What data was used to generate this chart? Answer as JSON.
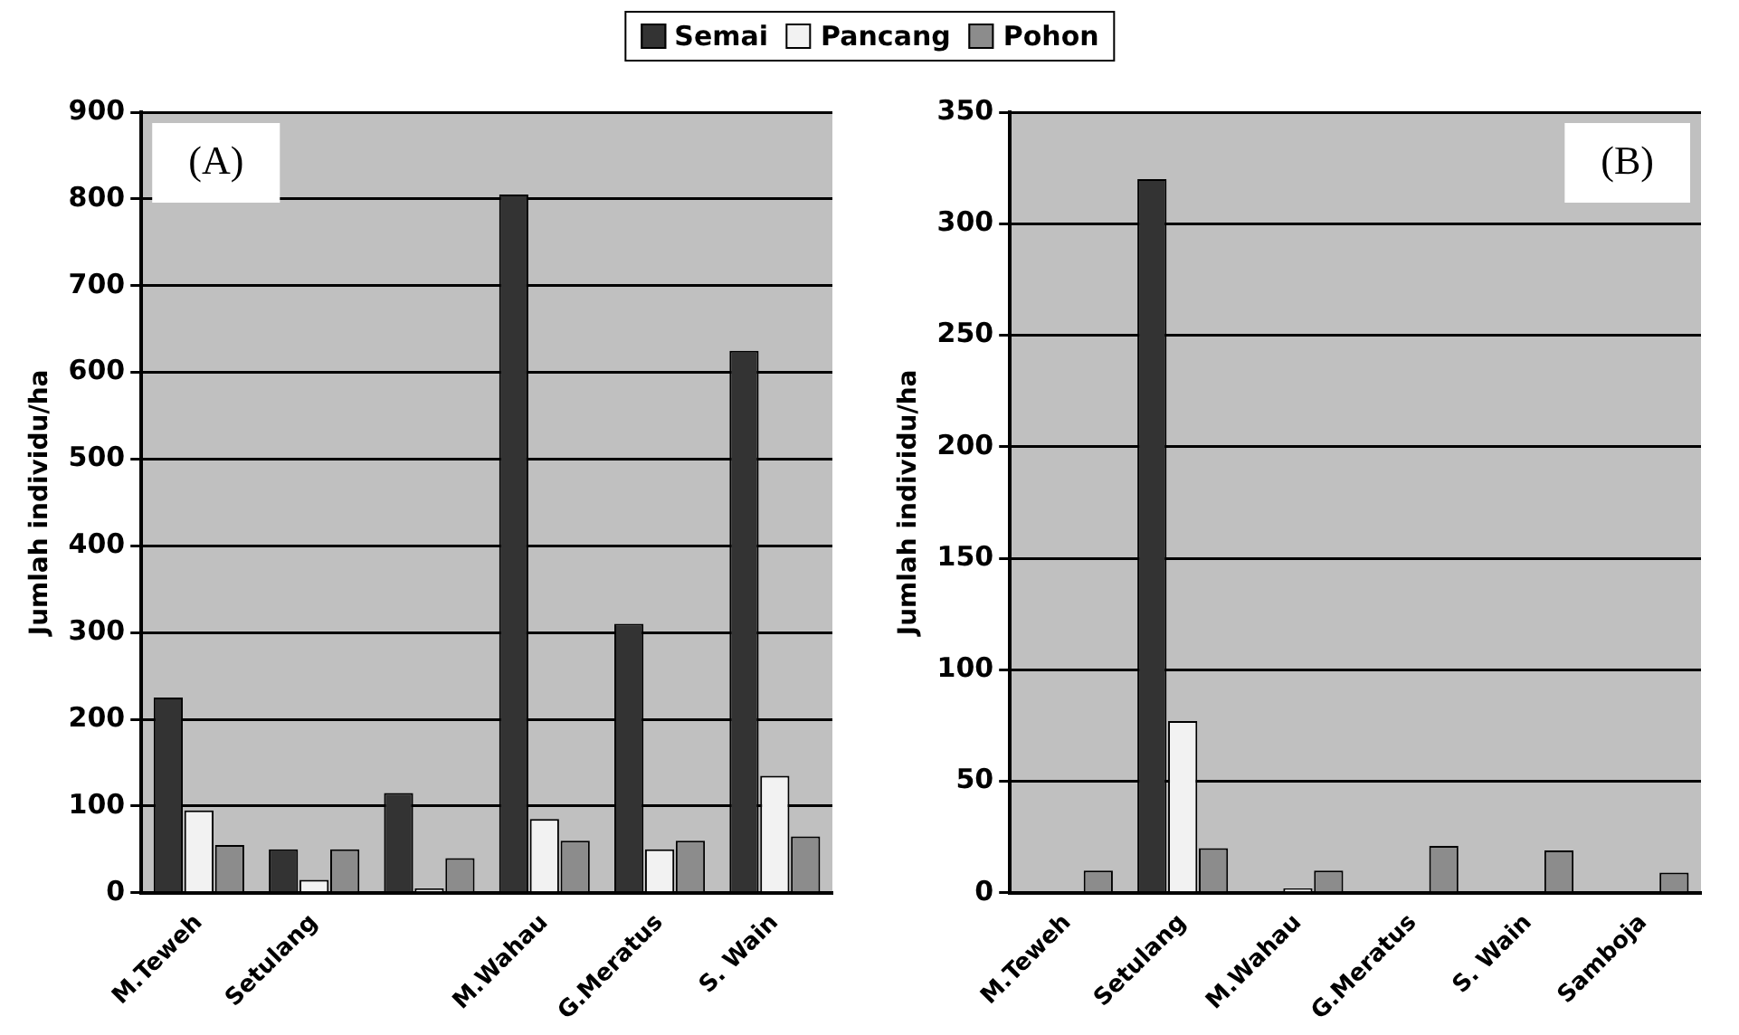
{
  "chart_data": [
    {
      "type": "bar",
      "ylabel": "Jumlah individu/ha",
      "annotations": [
        "(A)"
      ],
      "categories": [
        "M.Teweh",
        "Setulang",
        null,
        "M.Wahau",
        "G.Meratus",
        "S. Wain"
      ],
      "series": [
        {
          "name": "Semai",
          "color": "#333333",
          "values": [
            225,
            50,
            115,
            805,
            310,
            625
          ]
        },
        {
          "name": "Pancang",
          "color": "#f2f2f2",
          "values": [
            95,
            15,
            5,
            85,
            50,
            135
          ]
        },
        {
          "name": "Pohon",
          "color": "#8c8c8c",
          "values": [
            55,
            50,
            40,
            60,
            60,
            65
          ]
        }
      ],
      "ylim": [
        0,
        900
      ],
      "yticks": [
        0,
        100,
        200,
        300,
        400,
        500,
        600,
        700,
        800,
        900
      ],
      "grid": "y",
      "legend": "top"
    },
    {
      "type": "bar",
      "ylabel": "Jumlah individu/ha",
      "annotations": [
        "(B)"
      ],
      "categories": [
        "M.Teweh",
        "Setulang",
        "M.Wahau",
        "G.Meratus",
        "S. Wain",
        "Samboja"
      ],
      "series": [
        {
          "color": "#333333",
          "values": [
            0,
            320,
            0,
            0,
            0,
            0
          ]
        },
        {
          "color": "#f2f2f2",
          "values": [
            0,
            77,
            2,
            0,
            0,
            0
          ]
        },
        {
          "color": "#8c8c8c",
          "values": [
            10,
            20,
            10,
            21,
            19,
            9
          ]
        }
      ],
      "ylim": [
        0,
        350
      ],
      "yticks": [
        0,
        50,
        100,
        150,
        200,
        250,
        300,
        350
      ],
      "grid": "y"
    }
  ]
}
